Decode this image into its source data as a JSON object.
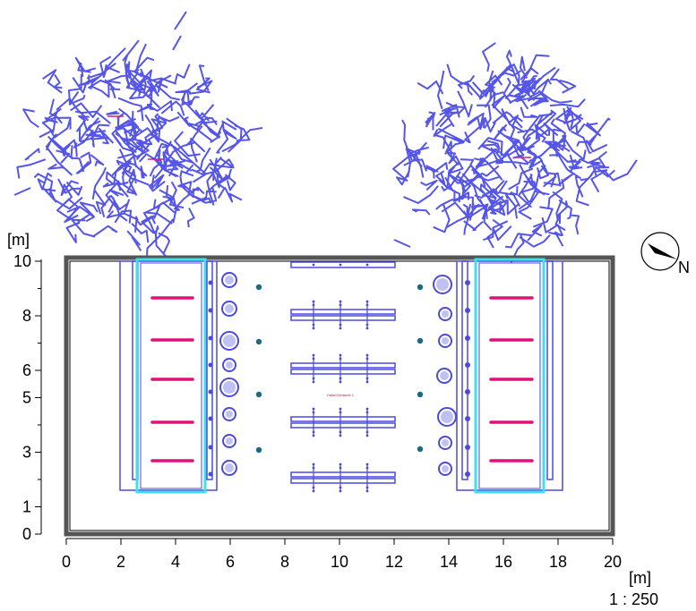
{
  "plan": {
    "y_unit": "[m]",
    "x_unit": "[m]",
    "scale": "1 : 250",
    "compass_letter": "N",
    "x_ticks": [
      "0",
      "2",
      "4",
      "6",
      "8",
      "10",
      "12",
      "14",
      "16",
      "18",
      "20"
    ],
    "y_ticks": [
      "0",
      "1",
      "3",
      "5",
      "6",
      "8",
      "10"
    ],
    "room_label": "Halle/Gebäude 1",
    "colors": {
      "frame": "#555555",
      "furniture": "#4a4ae0",
      "window_band": "#3ee0f0",
      "luminaire": "#e0107a",
      "sensor": "#1a6a80",
      "tree": "#5555e8"
    }
  }
}
